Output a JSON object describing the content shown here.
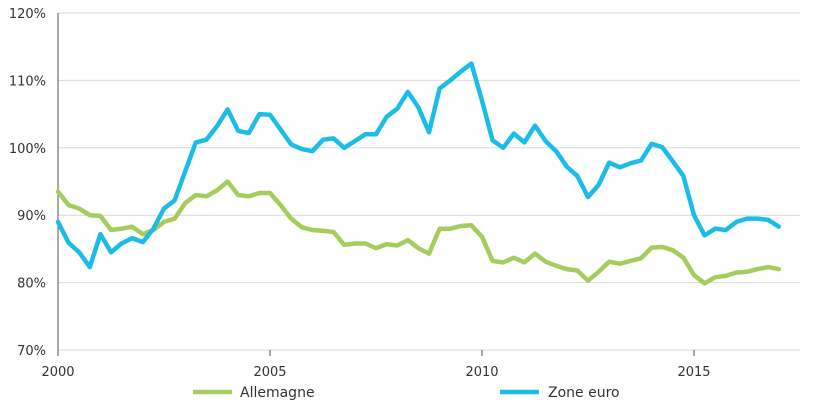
{
  "chart_data": {
    "type": "line",
    "xlim": [
      2000,
      2017.5
    ],
    "ylim": [
      70,
      120
    ],
    "y_ticks": [
      {
        "value": 70,
        "label": "70%"
      },
      {
        "value": 80,
        "label": "80%"
      },
      {
        "value": 90,
        "label": "90%"
      },
      {
        "value": 100,
        "label": "100%"
      },
      {
        "value": 110,
        "label": "110%"
      },
      {
        "value": 120,
        "label": "120%"
      }
    ],
    "x_ticks": [
      {
        "value": 2000,
        "label": "2000"
      },
      {
        "value": 2005,
        "label": "2005"
      },
      {
        "value": 2010,
        "label": "2010"
      },
      {
        "value": 2015,
        "label": "2015"
      }
    ],
    "grid": "horizontal",
    "legend_position": "bottom",
    "series": [
      {
        "name": "Allemagne",
        "color": "#a6cc5e",
        "x": [
          2000,
          2000.25,
          2000.5,
          2000.75,
          2001,
          2001.25,
          2001.5,
          2001.75,
          2002,
          2002.25,
          2002.5,
          2002.75,
          2003,
          2003.25,
          2003.5,
          2003.75,
          2004,
          2004.25,
          2004.5,
          2004.75,
          2005,
          2005.25,
          2005.5,
          2005.75,
          2006,
          2006.25,
          2006.5,
          2006.75,
          2007,
          2007.25,
          2007.5,
          2007.75,
          2008,
          2008.25,
          2008.5,
          2008.75,
          2009,
          2009.25,
          2009.5,
          2009.75,
          2010,
          2010.25,
          2010.5,
          2010.75,
          2011,
          2011.25,
          2011.5,
          2011.75,
          2012,
          2012.25,
          2012.5,
          2012.75,
          2013,
          2013.25,
          2013.5,
          2013.75,
          2014,
          2014.25,
          2014.5,
          2014.75,
          2015,
          2015.25,
          2015.5,
          2015.75,
          2016,
          2016.25,
          2016.5,
          2016.75,
          2017
        ],
        "values": [
          93.5,
          91.5,
          91,
          90,
          89.9,
          87.8,
          88,
          88.3,
          87.2,
          87.8,
          89,
          89.5,
          91.8,
          93,
          92.8,
          93.7,
          95,
          93,
          92.8,
          93.3,
          93.3,
          91.5,
          89.5,
          88.2,
          87.8,
          87.7,
          87.5,
          85.6,
          85.8,
          85.8,
          85.1,
          85.7,
          85.5,
          86.3,
          85.1,
          84.3,
          88,
          88,
          88.4,
          88.5,
          86.8,
          83.2,
          83,
          83.7,
          83,
          84.3,
          83.1,
          82.5,
          82,
          81.8,
          80.3,
          81.6,
          83.1,
          82.8,
          83.2,
          83.6,
          85.2,
          85.3,
          84.8,
          83.7,
          81.1,
          79.9,
          80.8,
          81,
          81.5,
          81.6,
          82,
          82.3,
          82
        ]
      },
      {
        "name": "Zone euro",
        "color": "#1bbde8",
        "x": [
          2000,
          2000.25,
          2000.5,
          2000.75,
          2001,
          2001.25,
          2001.5,
          2001.75,
          2002,
          2002.25,
          2002.5,
          2002.75,
          2003,
          2003.25,
          2003.5,
          2003.75,
          2004,
          2004.25,
          2004.5,
          2004.75,
          2005,
          2005.25,
          2005.5,
          2005.75,
          2006,
          2006.25,
          2006.5,
          2006.75,
          2007,
          2007.25,
          2007.5,
          2007.75,
          2008,
          2008.25,
          2008.5,
          2008.75,
          2009,
          2009.25,
          2009.5,
          2009.75,
          2010,
          2010.25,
          2010.5,
          2010.75,
          2011,
          2011.25,
          2011.5,
          2011.75,
          2012,
          2012.25,
          2012.5,
          2012.75,
          2013,
          2013.25,
          2013.5,
          2013.75,
          2014,
          2014.25,
          2014.5,
          2014.75,
          2015,
          2015.25,
          2015.5,
          2015.75,
          2016,
          2016.25,
          2016.5,
          2016.75,
          2017
        ],
        "values": [
          89,
          85.9,
          84.5,
          82.3,
          87.2,
          84.5,
          85.8,
          86.6,
          86,
          88,
          91,
          92.2,
          96.5,
          100.8,
          101.2,
          103.2,
          105.7,
          102.5,
          102.2,
          105,
          104.9,
          102.7,
          100.5,
          99.8,
          99.5,
          101.2,
          101.4,
          100,
          101,
          102,
          102,
          104.6,
          105.8,
          108.3,
          106,
          102.3,
          108.8,
          110,
          111.3,
          112.5,
          107,
          101.1,
          100,
          102.1,
          100.8,
          103.3,
          101,
          99.5,
          97.2,
          95.8,
          92.7,
          94.5,
          97.8,
          97.1,
          97.7,
          98.1,
          100.6,
          100.1,
          98,
          95.8,
          90,
          87,
          88,
          87.8,
          89,
          89.5,
          89.5,
          89.3,
          88.3
        ]
      }
    ]
  }
}
